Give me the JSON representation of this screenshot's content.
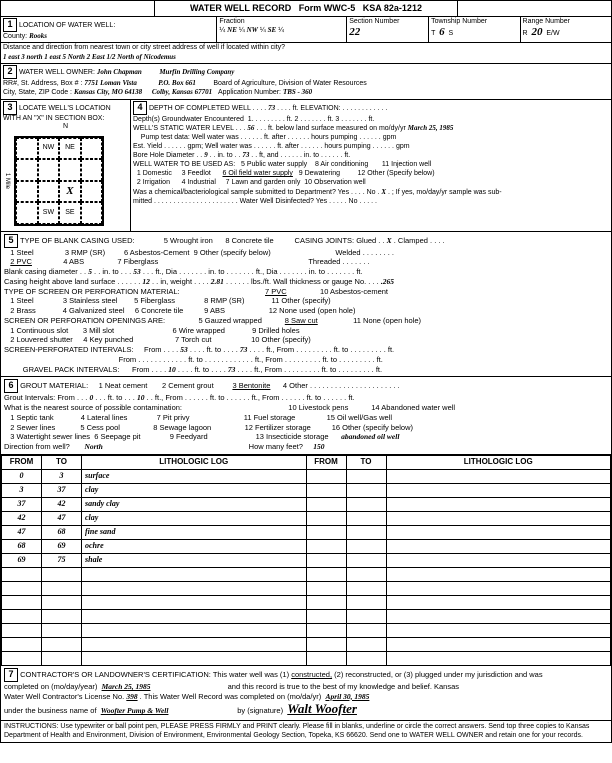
{
  "form": {
    "title": "WATER WELL RECORD",
    "formno": "Form WWC-5",
    "ksa": "KSA 82a-1212"
  },
  "loc": {
    "county_lbl": "County:",
    "county": "Rooks",
    "fraction_lbl": "Fraction",
    "f1": "NE",
    "f2": "NW",
    "f3": "SE",
    "section_lbl": "Section Number",
    "section": "22",
    "township_lbl": "Township Number",
    "township": "6",
    "ts": "S",
    "range_lbl": "Range Number",
    "range": "20",
    "rw": "E/W",
    "dist_lbl": "Distance and direction from nearest town or city street address of well if located within city?",
    "dist": "1 east   3 north   1 east   5 North   2 East   1/2 North   of Nicodemus"
  },
  "owner": {
    "lbl": "WATER WELL OWNER:",
    "name": "John Chapman",
    "co": "Murfin Drilling Company",
    "addr_lbl": "RR#, St. Address, Box # :",
    "addr": "7751 Loman Vista",
    "pob": "P.O. Box 661",
    "city_lbl": "City, State, ZIP Code :",
    "city": "Kansas City, MO  64138",
    "city2": "Colby, Kansas   67701",
    "board": "Board of Agriculture, Division of Water Resources",
    "app_lbl": "Application Number:",
    "app": "TBS - 360"
  },
  "s3": {
    "lbl": "LOCATE WELL'S LOCATION WITH AN \"X\" IN SECTION BOX:",
    "nw": "NW",
    "ne": "NE",
    "sw": "SW",
    "se": "SE",
    "x": "X"
  },
  "s4": {
    "depth_lbl": "DEPTH OF COMPLETED WELL",
    "depth": "73",
    "elev_lbl": "ft. ELEVATION:",
    "gw_lbl": "Depth(s) Groundwater Encountered",
    "gw1": "1.",
    "gw2": "ft.  2",
    "gw3": "ft.  3",
    "gwft": "ft.",
    "swl_lbl": "WELL'S STATIC WATER LEVEL",
    "swl": "56",
    "swl2": "ft. below land surface measured on mo/dy/yr",
    "swl_date": "March 25, 1985",
    "pump_lbl": "Pump test data: Well water was",
    "pump_a": "ft. after",
    "pump_b": "hours pumping",
    "pump_c": "gpm",
    "est_lbl": "Est. Yield",
    "est_a": "gpm; Well water was",
    "est_b": "ft. after",
    "est_c": "hours pumping",
    "est_d": "gpm",
    "bore_lbl": "Bore Hole Diameter",
    "bore": "9",
    "bore_a": "in. to",
    "bore_b": "73",
    "bore_c": "ft, and",
    "bore_d": "in. to",
    "bore_e": "ft.",
    "use_lbl": "WELL WATER TO BE USED AS:",
    "u1": "1 Domestic",
    "u2": "2 Irrigation",
    "u3": "3 Feedlot",
    "u4": "4 Industrial",
    "u5": "5 Public water supply",
    "u6": "6 Oil field water supply",
    "u7": "7 Lawn and garden only",
    "u8": "8 Air conditioning",
    "u9": "9 Dewatering",
    "u10": "10 Observation well",
    "u11": "11 Injection well",
    "u12": "12 Other (Specify below)",
    "chem": "Was a chemical/bacteriological sample submitted to Department? Yes",
    "chem_no": "No",
    "chem_x": "X",
    "chem_if": "; If yes, mo/day/yr sample was sub-",
    "chem2": "mitted",
    "disinfect": "Water Well Disinfected? Yes",
    "dno": "No"
  },
  "s5": {
    "lbl": "TYPE OF BLANK CASING USED:",
    "c1": "1 Steel",
    "c2": "2 PVC",
    "c3": "3 RMP (SR)",
    "c4": "4 ABS",
    "c5": "5 Wrought iron",
    "c6": "6 Asbestos-Cement",
    "c7": "7 Fiberglass",
    "c8": "8 Concrete tile",
    "c9": "9 Other (specify below)",
    "cj": "CASING JOINTS: Glued",
    "cjx": "X",
    "cj2": "Clamped",
    "cj3": "Welded",
    "cj4": "Threaded",
    "dia_lbl": "Blank casing diameter",
    "dia": "5",
    "dia_a": "in. to",
    "dia_b": "53",
    "dia_c": "ft., Dia",
    "dia_d": "in. to",
    "dia_e": "ft., Dia",
    "dia_f": "in. to",
    "dia_g": "ft.",
    "ht_lbl": "Casing height above land surface",
    "ht": "12",
    "ht_a": "in, weight",
    "ht_b": "2.81",
    "ht_c": "lbs./ft. Wall thickness or gauge No.",
    "ht_d": ".265",
    "perf_lbl": "TYPE OF SCREEN OR PERFORATION MATERIAL:",
    "p1": "1 Steel",
    "p2": "2 Brass",
    "p3": "3 Stainless steel",
    "p4": "4 Galvanized steel",
    "p5": "5 Fiberglass",
    "p6": "6 Concrete tile",
    "p7": "7 PVC",
    "p8": "8 RMP (SR)",
    "p9": "9 ABS",
    "p10": "10 Asbestos-cement",
    "p11": "11 Other (specify)",
    "p12": "12 None used (open hole)",
    "open_lbl": "SCREEN OR PERFORATION OPENINGS ARE:",
    "o1": "1 Continuous slot",
    "o2": "2 Louvered shutter",
    "o3": "3 Mill slot",
    "o4": "4 Key punched",
    "o5": "5 Gauzed wrapped",
    "o6": "6 Wire wrapped",
    "o7": "7 Torch cut",
    "o8": "8 Saw cut",
    "o9": "9 Drilled holes",
    "o10": "10 Other (specify)",
    "o11": "11 None (open hole)",
    "spi_lbl": "SCREEN-PERFORATED INTERVALS:",
    "spi_f": "From",
    "spi_v1": "53",
    "spi_t": "ft. to",
    "spi_v2": "73",
    "spi_e": "ft., From",
    "spi_ee": "ft. to",
    "spi_eee": "ft.",
    "gpi_lbl": "GRAVEL PACK INTERVALS:",
    "gpi_v1": "10",
    "gpi_v2": "73"
  },
  "s6": {
    "lbl": "GROUT MATERIAL:",
    "g1": "1 Neat cement",
    "g2": "2 Cement grout",
    "g3": "3 Bentonite",
    "g4": "4 Other",
    "gi_lbl": "Grout Intervals:  From",
    "gi_v1": "0",
    "gi_a": "ft. to",
    "gi_v2": "10",
    "gi_b": "ft., From",
    "gi_c": "ft. to",
    "gi_d": "ft., From",
    "gi_e": "ft. to",
    "gi_f": "ft.",
    "src_lbl": "What is the nearest source of possible contamination:",
    "s1": "1 Septic tank",
    "s2": "2 Sewer lines",
    "s3": "3 Watertight sewer lines",
    "s4": "4 Lateral lines",
    "s5": "5 Cess pool",
    "s6": "6 Seepage pit",
    "s7": "7 Pit privy",
    "s8": "8 Sewage lagoon",
    "s9": "9 Feedyard",
    "s10": "10 Livestock pens",
    "s11": "11 Fuel storage",
    "s12": "12 Fertilizer storage",
    "s13": "13 Insecticide storage",
    "s14": "14 Abandoned water well",
    "s15": "15 Oil well/Gas well",
    "s16": "16 Other (specify below)",
    "s16v": "abandoned oil well",
    "dir_lbl": "Direction from well?",
    "dir": "North",
    "feet_lbl": "How many feet?",
    "feet": "150"
  },
  "log": {
    "h1": "FROM",
    "h2": "TO",
    "h3": "LITHOLOGIC LOG",
    "rows": [
      {
        "f": "0",
        "t": "3",
        "l": "surface"
      },
      {
        "f": "3",
        "t": "37",
        "l": "clay"
      },
      {
        "f": "37",
        "t": "42",
        "l": "sandy clay"
      },
      {
        "f": "42",
        "t": "47",
        "l": "clay"
      },
      {
        "f": "47",
        "t": "68",
        "l": "fine sand"
      },
      {
        "f": "68",
        "t": "69",
        "l": "ochre"
      },
      {
        "f": "69",
        "t": "75",
        "l": "shale"
      }
    ]
  },
  "s7": {
    "cert": "CONTRACTOR'S OR LANDOWNER'S CERTIFICATION: This water well was (1)",
    "c1": "constructed,",
    "c2": "(2) reconstructed, or (3) plugged under my jurisdiction and was",
    "comp": "completed on (mo/day/year)",
    "comp_v": "March 25, 1985",
    "comp2": "and this record is true to the best of my knowledge and belief. Kansas",
    "lic": "Water Well Contractor's License No.",
    "lic_v": "398",
    "lic2": "This Water Well Record was completed on (mo/da/yr)",
    "lic_v2": "April 30, 1985",
    "bus": "under the business name of",
    "bus_v": "Woofter Pump & Well",
    "sig": "by (signature)",
    "sig_v": "Walt Woofter"
  },
  "instr": "INSTRUCTIONS: Use typewriter or ball point pen, PLEASE PRESS  FIRMLY and PRINT clearly. Please fill in blanks, underline or circle the correct answers. Send top three copies to Kansas Department of Health and Environment, Division of Environment, Environmental Geology Section, Topeka, KS 66620. Send one to WATER WELL OWNER and retain one for your records."
}
